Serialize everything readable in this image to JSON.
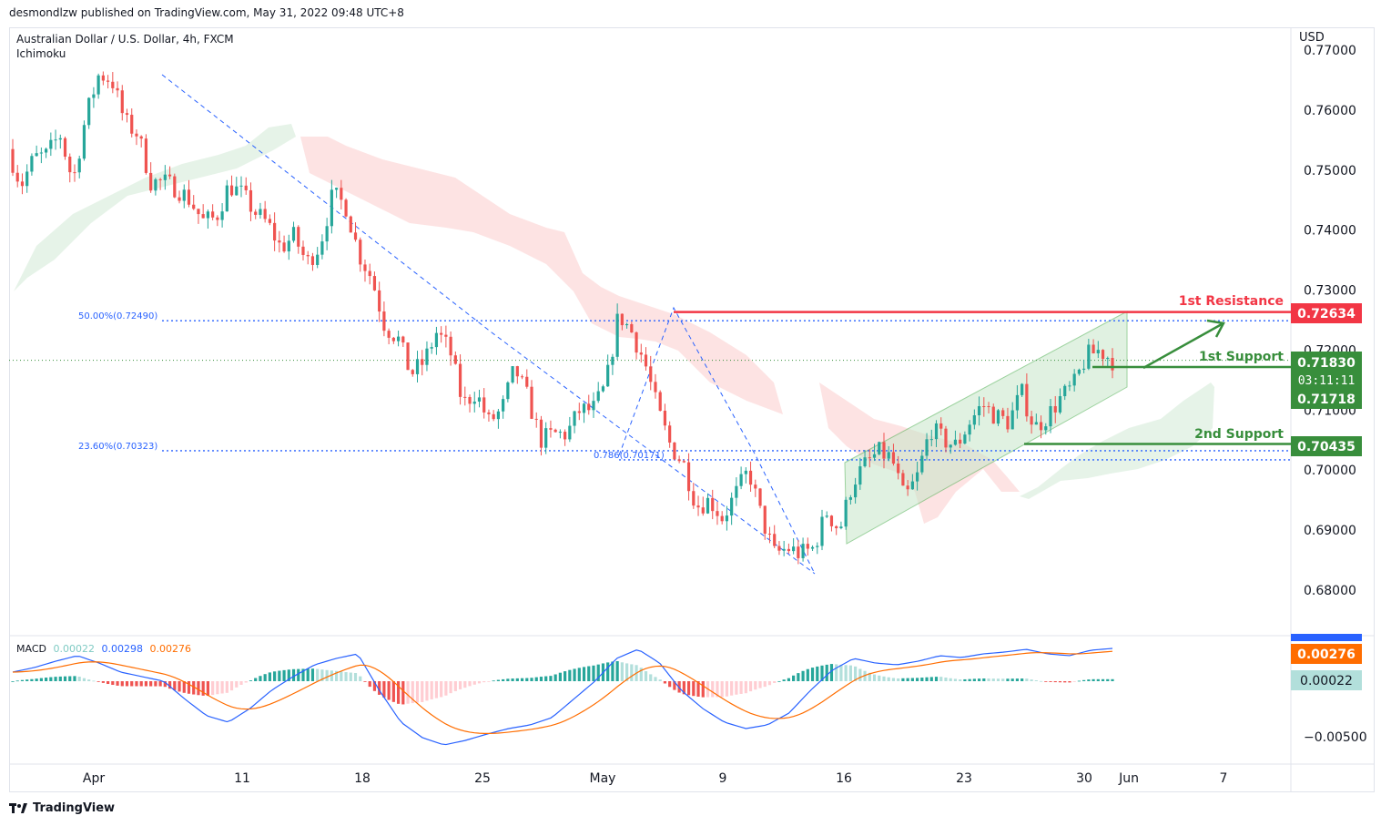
{
  "header": {
    "publisher": "desmondlzw published on TradingView.com, May 31, 2022 09:48 UTC+8"
  },
  "legend": {
    "symbol": "Australian Dollar / U.S. Dollar, 4h, FXCM",
    "indicator": "Ichimoku"
  },
  "axis": {
    "currency": "USD"
  },
  "footer": {
    "brand": "TradingView"
  },
  "colors": {
    "up": "#26a69a",
    "down": "#ef5350",
    "resistance": "#f23645",
    "support": "#388e3c",
    "fib": "#2962ff",
    "cloud_bull": "#e3f2e6",
    "cloud_bear": "#fde2e1"
  },
  "macd": {
    "label": "MACD",
    "hist": "0.00022",
    "macd": "0.00298",
    "signal": "0.00276",
    "hist_badge": "0.00022",
    "signal_badge": "0.00276",
    "axis_label": "−0.00500"
  },
  "annotations": {
    "fib50": "50.00%(0.72490)",
    "fib236": "23.60%(0.70323)",
    "fib786": "0.786(0.70171)",
    "res1": "1st Resistance",
    "sup1": "1st Support",
    "sup2": "2nd Support"
  },
  "badges": {
    "res1": "0.72634",
    "price": "0.71830",
    "countdown": "03:11:11",
    "sup1": "0.71718",
    "sup2": "0.70435"
  },
  "chart_data": {
    "type": "candlestick",
    "title": "Australian Dollar / U.S. Dollar, 4h, FXCM",
    "ylabel": "USD",
    "ylim": [
      0.6755,
      0.7785
    ],
    "yticks": [
      "0.77000",
      "0.76000",
      "0.75000",
      "0.74000",
      "0.73000",
      "0.72000",
      "0.71000",
      "0.70000",
      "0.69000",
      "0.68000"
    ],
    "xticks": [
      "Apr",
      "11",
      "18",
      "25",
      "May",
      "9",
      "16",
      "23",
      "30",
      "Jun",
      "7"
    ],
    "levels": {
      "resistance_1": 0.72634,
      "support_1": 0.71718,
      "support_2": 0.70435,
      "fib_50": 0.7249,
      "fib_236": 0.70323,
      "fib_786": 0.70171,
      "last_price": 0.7183
    },
    "price_path": [
      [
        0.7535,
        0.7475
      ],
      [
        0.752,
        0.7525
      ],
      [
        0.756,
        0.748
      ],
      [
        0.759,
        0.766
      ],
      [
        0.765,
        0.758
      ],
      [
        0.756,
        0.748
      ],
      [
        0.748,
        0.747
      ],
      [
        0.745,
        0.7415
      ],
      [
        0.742,
        0.7475
      ],
      [
        0.746,
        0.743
      ],
      [
        0.741,
        0.737
      ],
      [
        0.739,
        0.7345
      ],
      [
        0.7375,
        0.746
      ],
      [
        0.744,
        0.736
      ],
      [
        0.732,
        0.724
      ],
      [
        0.722,
        0.716
      ],
      [
        0.718,
        0.723
      ],
      [
        0.72,
        0.711
      ],
      [
        0.713,
        0.708
      ],
      [
        0.71,
        0.717
      ],
      [
        0.712,
        0.705
      ],
      [
        0.706,
        0.706
      ],
      [
        0.71,
        0.71
      ],
      [
        0.714,
        0.726
      ],
      [
        0.723,
        0.718
      ],
      [
        0.71,
        0.704
      ],
      [
        0.701,
        0.694
      ],
      [
        0.695,
        0.692
      ],
      [
        0.696,
        0.7
      ],
      [
        0.692,
        0.686
      ],
      [
        0.687,
        0.686
      ],
      [
        0.687,
        0.693
      ],
      [
        0.69,
        0.698
      ],
      [
        0.701,
        0.703
      ],
      [
        0.702,
        0.695
      ],
      [
        0.699,
        0.707
      ],
      [
        0.705,
        0.704
      ],
      [
        0.708,
        0.711
      ],
      [
        0.709,
        0.708
      ],
      [
        0.713,
        0.707
      ],
      [
        0.709,
        0.712
      ],
      [
        0.714,
        0.719
      ],
      [
        0.72,
        0.7183
      ]
    ]
  }
}
